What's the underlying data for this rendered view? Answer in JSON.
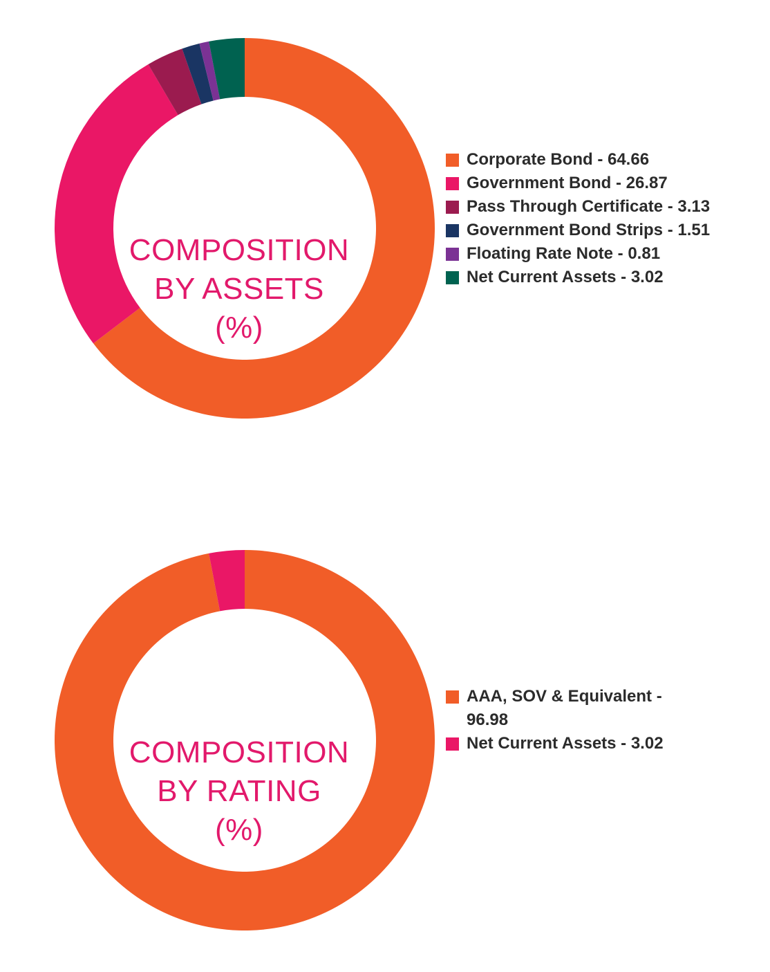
{
  "chart_data": [
    {
      "type": "pie",
      "id": "assets",
      "title": [
        "COMPOSITION",
        "BY ASSETS",
        "(%)"
      ],
      "categories": [
        "Corporate Bond",
        "Government Bond",
        "Pass Through Certificate",
        "Government Bond Strips",
        "Floating Rate Note",
        "Net Current Assets"
      ],
      "values": [
        64.66,
        26.87,
        3.13,
        1.51,
        0.81,
        3.02
      ],
      "colors": [
        "#f15d28",
        "#ea1766",
        "#9b1b4f",
        "#1a3563",
        "#7b3294",
        "#006250"
      ],
      "legend_labels": [
        "Corporate Bond - 64.66",
        "Government Bond - 26.87",
        "Pass Through Certificate - 3.13",
        "Government Bond Strips - 1.51",
        "Floating Rate Note - 0.81",
        "Net Current Assets - 3.02"
      ],
      "legend_position": "right"
    },
    {
      "type": "pie",
      "id": "rating",
      "title": [
        "COMPOSITION",
        "BY RATING",
        "(%)"
      ],
      "categories": [
        "AAA, SOV & Equivalent",
        "Net Current Assets"
      ],
      "values": [
        96.98,
        3.02
      ],
      "colors": [
        "#f15d28",
        "#ea1766"
      ],
      "legend_labels": [
        "AAA, SOV & Equivalent - 96.98",
        "Net Current Assets - 3.02"
      ],
      "legend_position": "right"
    }
  ]
}
